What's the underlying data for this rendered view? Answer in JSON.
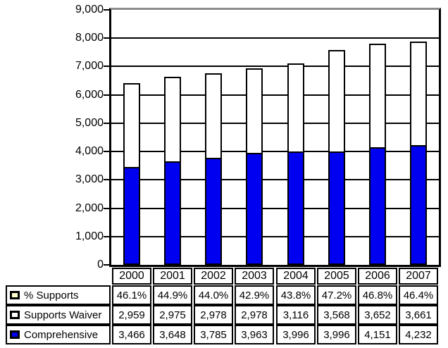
{
  "chart_data": {
    "type": "bar",
    "stacked": true,
    "title": "",
    "xlabel": "",
    "ylabel": "",
    "ylim": [
      0,
      9000
    ],
    "ytick_interval": 1000,
    "ytick_labels": [
      "9,000",
      "8,000",
      "7,000",
      "6,000",
      "5,000",
      "4,000",
      "3,000",
      "2,000",
      "1,000",
      "0"
    ],
    "grid": true,
    "categories": [
      "2000",
      "2001",
      "2002",
      "2003",
      "2004",
      "2005",
      "2006",
      "2007"
    ],
    "series": [
      {
        "name": "Comprehensive",
        "color": "#0000F0",
        "values": [
          3466,
          3648,
          3785,
          3963,
          3996,
          3996,
          4151,
          4232
        ]
      },
      {
        "name": "Supports Waiver",
        "color": "#FFFFFF",
        "values": [
          2959,
          2975,
          2978,
          2978,
          3116,
          3568,
          3652,
          3661
        ]
      }
    ],
    "annotations": {
      "percent_supports_row": {
        "name": "% Supports",
        "values": [
          "46.1%",
          "44.9%",
          "44.0%",
          "42.9%",
          "43.8%",
          "47.2%",
          "46.8%",
          "46.4%"
        ]
      }
    },
    "legend_position": "table-left-column"
  },
  "table": {
    "year_header": [
      "2000",
      "2001",
      "2002",
      "2003",
      "2004",
      "2005",
      "2006",
      "2007"
    ],
    "rows": [
      {
        "label": "% Supports",
        "marker_color": "#FFFFCC",
        "values": [
          "46.1%",
          "44.9%",
          "44.0%",
          "42.9%",
          "43.8%",
          "47.2%",
          "46.8%",
          "46.4%"
        ]
      },
      {
        "label": "Supports Waiver",
        "marker_color": "#FFFFFF",
        "values": [
          "2,959",
          "2,975",
          "2,978",
          "2,978",
          "3,116",
          "3,568",
          "3,652",
          "3,661"
        ]
      },
      {
        "label": "Comprehensive",
        "marker_color": "#0000F0",
        "values": [
          "3,466",
          "3,648",
          "3,785",
          "3,963",
          "3,996",
          "3,996",
          "4,151",
          "4,232"
        ]
      }
    ]
  },
  "colors": {
    "bar_blue": "#0000F0",
    "bar_white": "#FFFFFF",
    "bar_border": "#000000",
    "gridline": "#000000",
    "plot_top_border": "#8C8C8C",
    "marker_cream": "#FFFFCC",
    "background": "#FFFFFF",
    "text": "#000000"
  }
}
